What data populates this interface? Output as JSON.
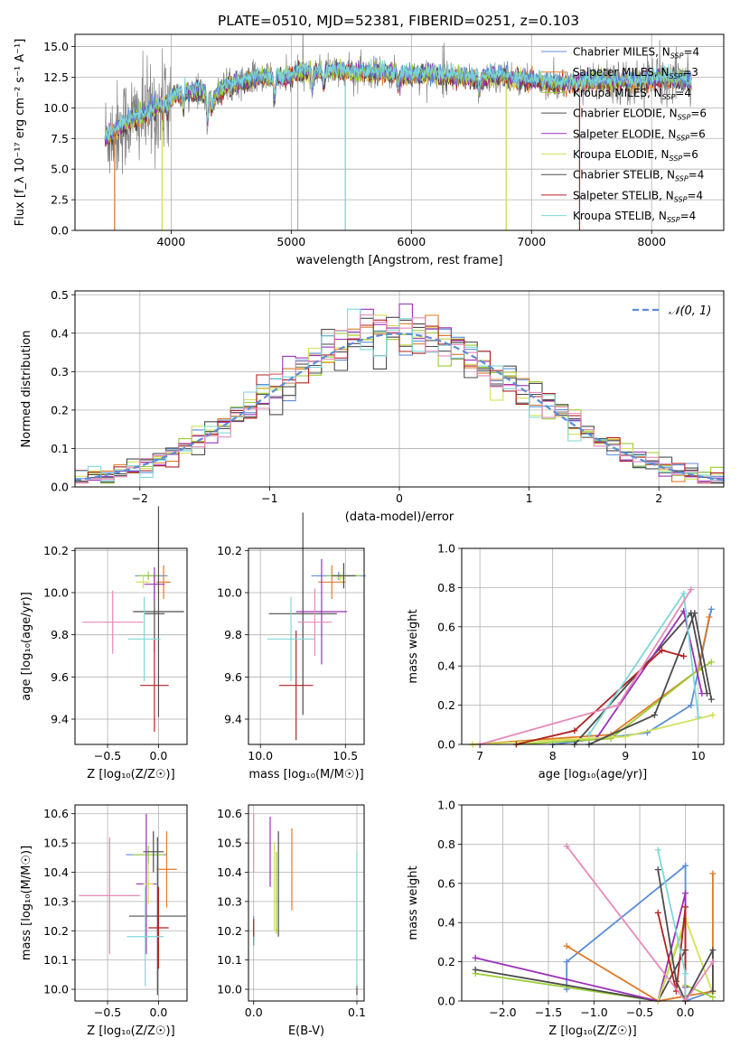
{
  "title": "PLATE=0510, MJD=52381, FIBERID=0251, z=0.103",
  "colors": {
    "chabrier_miles": "#5b8dd6",
    "salpeter_miles": "#e07b28",
    "kroupa_miles": "#9acd32",
    "chabrier_elodie": "#4a4a4a",
    "salpeter_elodie": "#9932b8",
    "kroupa_elodie": "#d4e05a",
    "chabrier_stelib": "#4d4d4d",
    "salpeter_stelib": "#b22222",
    "kroupa_stelib": "#7fd7d7",
    "pink": "#e68ab8",
    "gaussian": "#5b8dd6"
  },
  "chart_data": [
    {
      "id": "spectrum",
      "type": "line",
      "xlabel": "wavelength [Angstrom, rest frame]",
      "ylabel": "Flux [f_λ 10⁻¹⁷ erg cm⁻² s⁻¹ A⁻¹]",
      "xlim": [
        3200,
        8600
      ],
      "ylim": [
        0,
        16
      ],
      "xticks": [
        "4000",
        "5000",
        "6000",
        "7000",
        "8000"
      ],
      "yticks": [
        "0.0",
        "2.5",
        "5.0",
        "7.5",
        "10.0",
        "12.5",
        "15.0"
      ],
      "legend_position": "top-right",
      "legend": [
        "Chabrier MILES, N_SSP=4",
        "Salpeter MILES, N_SSP=3",
        "Kroupa MILES, N_SSP=4",
        "Chabrier ELODIE, N_SSP=6",
        "Salpeter ELODIE, N_SSP=6",
        "Kroupa ELODIE, N_SSP=6",
        "Chabrier STELIB, N_SSP=4",
        "Salpeter STELIB, N_SSP=4",
        "Kroupa STELIB, N_SSP=4"
      ],
      "continuum": [
        [
          3450,
          7.6
        ],
        [
          3550,
          8.2
        ],
        [
          3650,
          9.0
        ],
        [
          3750,
          9.3
        ],
        [
          3850,
          9.8
        ],
        [
          3950,
          10.4
        ],
        [
          4050,
          11.2
        ],
        [
          4150,
          11.3
        ],
        [
          4250,
          11.5
        ],
        [
          4350,
          10.8
        ],
        [
          4450,
          11.8
        ],
        [
          4550,
          12.0
        ],
        [
          4650,
          12.3
        ],
        [
          4750,
          12.5
        ],
        [
          4850,
          12.6
        ],
        [
          4950,
          12.4
        ],
        [
          5050,
          12.8
        ],
        [
          5150,
          13.0
        ],
        [
          5250,
          12.9
        ],
        [
          5350,
          13.1
        ],
        [
          5450,
          13.0
        ],
        [
          5550,
          12.9
        ],
        [
          5650,
          12.8
        ],
        [
          5750,
          12.9
        ],
        [
          5850,
          12.8
        ],
        [
          5950,
          12.7
        ],
        [
          6050,
          12.7
        ],
        [
          6150,
          12.8
        ],
        [
          6250,
          12.6
        ],
        [
          6350,
          12.6
        ],
        [
          6450,
          12.5
        ],
        [
          6550,
          12.4
        ],
        [
          6650,
          12.5
        ],
        [
          6750,
          12.6
        ],
        [
          6850,
          12.4
        ],
        [
          6950,
          12.3
        ],
        [
          7050,
          12.2
        ],
        [
          7150,
          12.1
        ],
        [
          7250,
          11.9
        ],
        [
          7350,
          12.0
        ],
        [
          7450,
          12.1
        ],
        [
          7550,
          12.2
        ],
        [
          7650,
          12.1
        ],
        [
          7750,
          12.2
        ],
        [
          7850,
          12.1
        ],
        [
          7950,
          12.3
        ],
        [
          8050,
          12.4
        ],
        [
          8150,
          12.4
        ],
        [
          8250,
          12.3
        ],
        [
          8330,
          12.2
        ]
      ],
      "absorption_lines": [
        [
          3934,
          9.5
        ],
        [
          3969,
          9.6
        ],
        [
          4102,
          9.8
        ],
        [
          4304,
          8.6
        ],
        [
          4341,
          9.8
        ],
        [
          4861,
          10.6
        ],
        [
          5175,
          11.3
        ],
        [
          5270,
          11.8
        ],
        [
          5890,
          11.6
        ],
        [
          6563,
          11.2
        ],
        [
          8498,
          11.5
        ]
      ],
      "spikes": [
        [
          3530,
          0
        ],
        [
          3925,
          0
        ],
        [
          5055,
          0
        ],
        [
          5450,
          0
        ],
        [
          6790,
          0
        ],
        [
          7400,
          0
        ]
      ]
    },
    {
      "id": "residuals",
      "type": "line",
      "xlabel": "(data-model)/error",
      "ylabel": "Normed distribution",
      "xlim": [
        -2.5,
        2.5
      ],
      "ylim": [
        0,
        0.51
      ],
      "xticks": [
        "−2",
        "−1",
        "0",
        "1",
        "2"
      ],
      "yticks": [
        "0.0",
        "0.1",
        "0.2",
        "0.3",
        "0.4",
        "0.5"
      ],
      "legend": [
        "𝒩(0, 1)"
      ],
      "legend_position": "top-right",
      "note": "step histograms of nine fits overlaid on the standard normal curve"
    },
    {
      "id": "age_vs_Z",
      "type": "scatter",
      "xlabel": "Z [log₁₀(Z/Z☉)]",
      "ylabel": "age  [log₁₀(age/yr)]",
      "xlim": [
        -0.82,
        0.28
      ],
      "ylim": [
        9.28,
        10.21
      ],
      "xticks": [
        "−0.5",
        "0.0"
      ],
      "yticks": [
        "9.4",
        "9.6",
        "9.8",
        "10.0",
        "10.2"
      ],
      "points": [
        {
          "c": "chabrier_miles",
          "x": -0.07,
          "y": 10.08,
          "xe": 0.16,
          "ye": 0.0
        },
        {
          "c": "salpeter_miles",
          "x": 0.05,
          "y": 10.05,
          "xe": 0.07,
          "ye": 0.08
        },
        {
          "c": "kroupa_miles",
          "x": -0.1,
          "y": 10.08,
          "xe": 0.1,
          "ye": 0.02
        },
        {
          "c": "chabrier_elodie",
          "x": -0.04,
          "y": 9.9,
          "xe": 0.1,
          "ye": 0.18
        },
        {
          "c": "salpeter_elodie",
          "x": -0.04,
          "y": 10.04,
          "xe": 0.1,
          "ye": 0.08
        },
        {
          "c": "kroupa_elodie",
          "x": -0.15,
          "y": 10.05,
          "xe": 0.07,
          "ye": 0.03
        },
        {
          "c": "chabrier_stelib",
          "x": 0.0,
          "y": 9.91,
          "xe": 0.25,
          "ye": 0.5
        },
        {
          "c": "salpeter_stelib",
          "x": -0.04,
          "y": 9.56,
          "xe": 0.14,
          "ye": 0.22
        },
        {
          "c": "kroupa_stelib",
          "x": -0.14,
          "y": 9.78,
          "xe": 0.16,
          "ye": 0.2
        },
        {
          "c": "pink",
          "x": -0.45,
          "y": 9.86,
          "xe": 0.3,
          "ye": 0.15
        }
      ]
    },
    {
      "id": "age_vs_mass",
      "type": "scatter",
      "xlabel": "mass [log₁₀(M/M☉)]",
      "ylabel": "",
      "xlim": [
        9.93,
        10.61
      ],
      "ylim": [
        9.28,
        10.21
      ],
      "xticks": [
        "10.0",
        "10.5"
      ],
      "yticks": [
        "9.4",
        "9.6",
        "9.8",
        "10.0",
        "10.2"
      ],
      "points": [
        {
          "c": "chabrier_miles",
          "x": 10.46,
          "y": 10.08,
          "xe": 0.16,
          "ye": 0.02
        },
        {
          "c": "salpeter_miles",
          "x": 10.42,
          "y": 10.05,
          "xe": 0.08,
          "ye": 0.08
        },
        {
          "c": "kroupa_miles",
          "x": 10.49,
          "y": 10.08,
          "xe": 0.1,
          "ye": 0.02
        },
        {
          "c": "chabrier_elodie",
          "x": 10.25,
          "y": 9.9,
          "xe": 0.2,
          "ye": 0.48
        },
        {
          "c": "salpeter_elodie",
          "x": 10.36,
          "y": 9.91,
          "xe": 0.15,
          "ye": 0.25
        },
        {
          "c": "kroupa_elodie",
          "x": 10.47,
          "y": 10.07,
          "xe": 0.03,
          "ye": 0.02
        },
        {
          "c": "chabrier_stelib",
          "x": 10.49,
          "y": 10.08,
          "xe": 0.07,
          "ye": 0.06
        },
        {
          "c": "salpeter_stelib",
          "x": 10.21,
          "y": 9.56,
          "xe": 0.1,
          "ye": 0.26
        },
        {
          "c": "kroupa_stelib",
          "x": 10.18,
          "y": 9.78,
          "xe": 0.14,
          "ye": 0.2
        },
        {
          "c": "pink",
          "x": 10.32,
          "y": 9.86,
          "xe": 0.1,
          "ye": 0.16
        }
      ]
    },
    {
      "id": "weight_vs_age",
      "type": "line",
      "xlabel": "age  [log₁₀(age/yr)]",
      "ylabel": "mass weight",
      "xlim": [
        6.75,
        10.35
      ],
      "ylim": [
        0,
        1.0
      ],
      "xticks": [
        "7",
        "8",
        "9",
        "10"
      ],
      "yticks": [
        "0.0",
        "0.2",
        "0.4",
        "0.6",
        "0.8",
        "1.0"
      ],
      "series": [
        {
          "c": "chabrier_miles",
          "x": [
            8.0,
            9.3,
            9.9,
            10.18
          ],
          "y": [
            0.0,
            0.06,
            0.2,
            0.69
          ]
        },
        {
          "c": "salpeter_miles",
          "x": [
            6.9,
            8.8,
            10.0,
            10.15
          ],
          "y": [
            0.0,
            0.05,
            0.38,
            0.65
          ]
        },
        {
          "c": "kroupa_miles",
          "x": [
            7.5,
            8.8,
            10.0,
            10.18
          ],
          "y": [
            0.0,
            0.03,
            0.38,
            0.42
          ]
        },
        {
          "c": "chabrier_elodie",
          "x": [
            8.3,
            9.9,
            10.12
          ],
          "y": [
            0.0,
            0.67,
            0.26
          ]
        },
        {
          "c": "salpeter_elodie",
          "x": [
            8.6,
            9.8,
            10.05
          ],
          "y": [
            0.03,
            0.68,
            0.26
          ]
        },
        {
          "c": "kroupa_elodie",
          "x": [
            6.9,
            9.0,
            10.2
          ],
          "y": [
            0.0,
            0.04,
            0.15
          ]
        },
        {
          "c": "chabrier_stelib",
          "x": [
            8.5,
            9.4,
            9.95,
            10.18
          ],
          "y": [
            0.0,
            0.15,
            0.67,
            0.23
          ]
        },
        {
          "c": "salpeter_stelib",
          "x": [
            7.5,
            8.3,
            9.5,
            9.8
          ],
          "y": [
            0.0,
            0.07,
            0.48,
            0.45
          ]
        },
        {
          "c": "kroupa_stelib",
          "x": [
            8.5,
            9.8,
            10.0
          ],
          "y": [
            0.05,
            0.77,
            0.14
          ]
        },
        {
          "c": "pink",
          "x": [
            7.0,
            8.9,
            9.9
          ],
          "y": [
            0.0,
            0.2,
            0.79
          ]
        }
      ]
    },
    {
      "id": "mass_vs_Z",
      "type": "scatter",
      "xlabel": "Z [log₁₀(Z/Z☉)]",
      "ylabel": "mass [log₁₀(M/M☉)]",
      "xlim": [
        -0.82,
        0.28
      ],
      "ylim": [
        9.96,
        10.63
      ],
      "xticks": [
        "−0.5",
        "0.0"
      ],
      "yticks": [
        "10.0",
        "10.1",
        "10.2",
        "10.3",
        "10.4",
        "10.5",
        "10.6"
      ],
      "points": [
        {
          "c": "chabrier_miles",
          "x": -0.12,
          "y": 10.46,
          "xe": 0.2,
          "ye": 0.05
        },
        {
          "c": "salpeter_miles",
          "x": 0.08,
          "y": 10.41,
          "xe": 0.1,
          "ye": 0.13
        },
        {
          "c": "kroupa_miles",
          "x": -0.1,
          "y": 10.46,
          "xe": 0.15,
          "ye": 0.03
        },
        {
          "c": "chabrier_elodie",
          "x": -0.05,
          "y": 10.47,
          "xe": 0.1,
          "ye": 0.07
        },
        {
          "c": "salpeter_elodie",
          "x": -0.12,
          "y": 10.36,
          "xe": 0.1,
          "ye": 0.24
        },
        {
          "c": "kroupa_elodie",
          "x": -0.1,
          "y": 10.36,
          "xe": 0.05,
          "ye": 0.07
        },
        {
          "c": "chabrier_stelib",
          "x": -0.01,
          "y": 10.25,
          "xe": 0.28,
          "ye": 0.27
        },
        {
          "c": "salpeter_stelib",
          "x": 0.0,
          "y": 10.21,
          "xe": 0.1,
          "ye": 0.14
        },
        {
          "c": "kroupa_stelib",
          "x": -0.13,
          "y": 10.18,
          "xe": 0.18,
          "ye": 0.17
        },
        {
          "c": "pink",
          "x": -0.48,
          "y": 10.32,
          "xe": 0.3,
          "ye": 0.2
        }
      ]
    },
    {
      "id": "mass_vs_ebv",
      "type": "scatter",
      "xlabel": "E(B-V)",
      "ylabel": "",
      "xlim": [
        -0.005,
        0.107
      ],
      "ylim": [
        9.96,
        10.63
      ],
      "xticks": [
        "0.0",
        "0.1"
      ],
      "yticks": [
        "10.0",
        "10.1",
        "10.2",
        "10.3",
        "10.4",
        "10.5",
        "10.6"
      ],
      "points": [
        {
          "c": "chabrier_miles",
          "x": 0.0,
          "y": 10.2,
          "xe": 0,
          "ye": 0.05
        },
        {
          "c": "salpeter_miles",
          "x": 0.037,
          "y": 10.41,
          "xe": 0,
          "ye": 0.14
        },
        {
          "c": "kroupa_miles",
          "x": 0.022,
          "y": 10.33,
          "xe": 0,
          "ye": 0.14
        },
        {
          "c": "chabrier_elodie",
          "x": 0.024,
          "y": 10.36,
          "xe": 0,
          "ye": 0.18
        },
        {
          "c": "salpeter_elodie",
          "x": 0.016,
          "y": 10.47,
          "xe": 0,
          "ye": 0.12
        },
        {
          "c": "kroupa_elodie",
          "x": 0.02,
          "y": 10.35,
          "xe": 0,
          "ye": 0.15
        },
        {
          "c": "chabrier_stelib",
          "x": 0.1,
          "y": 10.0,
          "xe": 0,
          "ye": 0.02
        },
        {
          "c": "salpeter_stelib",
          "x": 0.0,
          "y": 10.21,
          "xe": 0,
          "ye": 0.03
        },
        {
          "c": "kroupa_stelib",
          "x": 0.1,
          "y": 10.24,
          "xe": 0,
          "ye": 0.23
        },
        {
          "c": "pink",
          "x": 0.0,
          "y": 10.5,
          "xe": 0,
          "ye": 0.1
        }
      ]
    },
    {
      "id": "weight_vs_Z",
      "type": "line",
      "xlabel": "Z [log₁₀(Z/Z☉)]",
      "ylabel": "mass weight",
      "xlim": [
        -2.45,
        0.42
      ],
      "ylim": [
        0,
        1.0
      ],
      "xticks": [
        "−2.0",
        "−1.5",
        "−1.0",
        "−0.5",
        "0.0"
      ],
      "yticks": [
        "0.0",
        "0.2",
        "0.4",
        "0.6",
        "0.8",
        "1.0"
      ],
      "series": [
        {
          "c": "chabrier_miles",
          "x": [
            -1.3,
            -1.3,
            0.0,
            0.0,
            0.3
          ],
          "y": [
            0.06,
            0.2,
            0.69,
            0.0,
            0.05
          ]
        },
        {
          "c": "salpeter_miles",
          "x": [
            -1.3,
            -0.3,
            0.3,
            0.3
          ],
          "y": [
            0.28,
            0.0,
            0.05,
            0.65
          ]
        },
        {
          "c": "kroupa_miles",
          "x": [
            -2.3,
            -0.3,
            0.0,
            0.0,
            0.3
          ],
          "y": [
            0.14,
            0.0,
            0.4,
            0.08,
            0.02
          ]
        },
        {
          "c": "chabrier_elodie",
          "x": [
            -2.3,
            -0.3,
            0.0
          ],
          "y": [
            0.16,
            0.0,
            0.26
          ]
        },
        {
          "c": "salpeter_elodie",
          "x": [
            -2.3,
            -0.3,
            0.0,
            0.0
          ],
          "y": [
            0.22,
            0.0,
            0.55,
            0.07
          ]
        },
        {
          "c": "kroupa_elodie",
          "x": [
            -0.3,
            0.0,
            0.3
          ],
          "y": [
            0.0,
            0.42,
            0.04
          ]
        },
        {
          "c": "chabrier_stelib",
          "x": [
            -0.3,
            -0.1,
            0.0,
            0.3,
            0.3
          ],
          "y": [
            0.67,
            0.1,
            0.0,
            0.26,
            0.05
          ]
        },
        {
          "c": "salpeter_stelib",
          "x": [
            -0.3,
            -0.1,
            0.0,
            0.0
          ],
          "y": [
            0.45,
            0.05,
            0.48,
            0.0
          ]
        },
        {
          "c": "kroupa_stelib",
          "x": [
            -0.3,
            0.0,
            0.0
          ],
          "y": [
            0.77,
            0.14,
            0.0
          ]
        },
        {
          "c": "pink",
          "x": [
            -1.3,
            0.0,
            0.3
          ],
          "y": [
            0.79,
            0.0,
            0.2
          ]
        }
      ]
    }
  ]
}
